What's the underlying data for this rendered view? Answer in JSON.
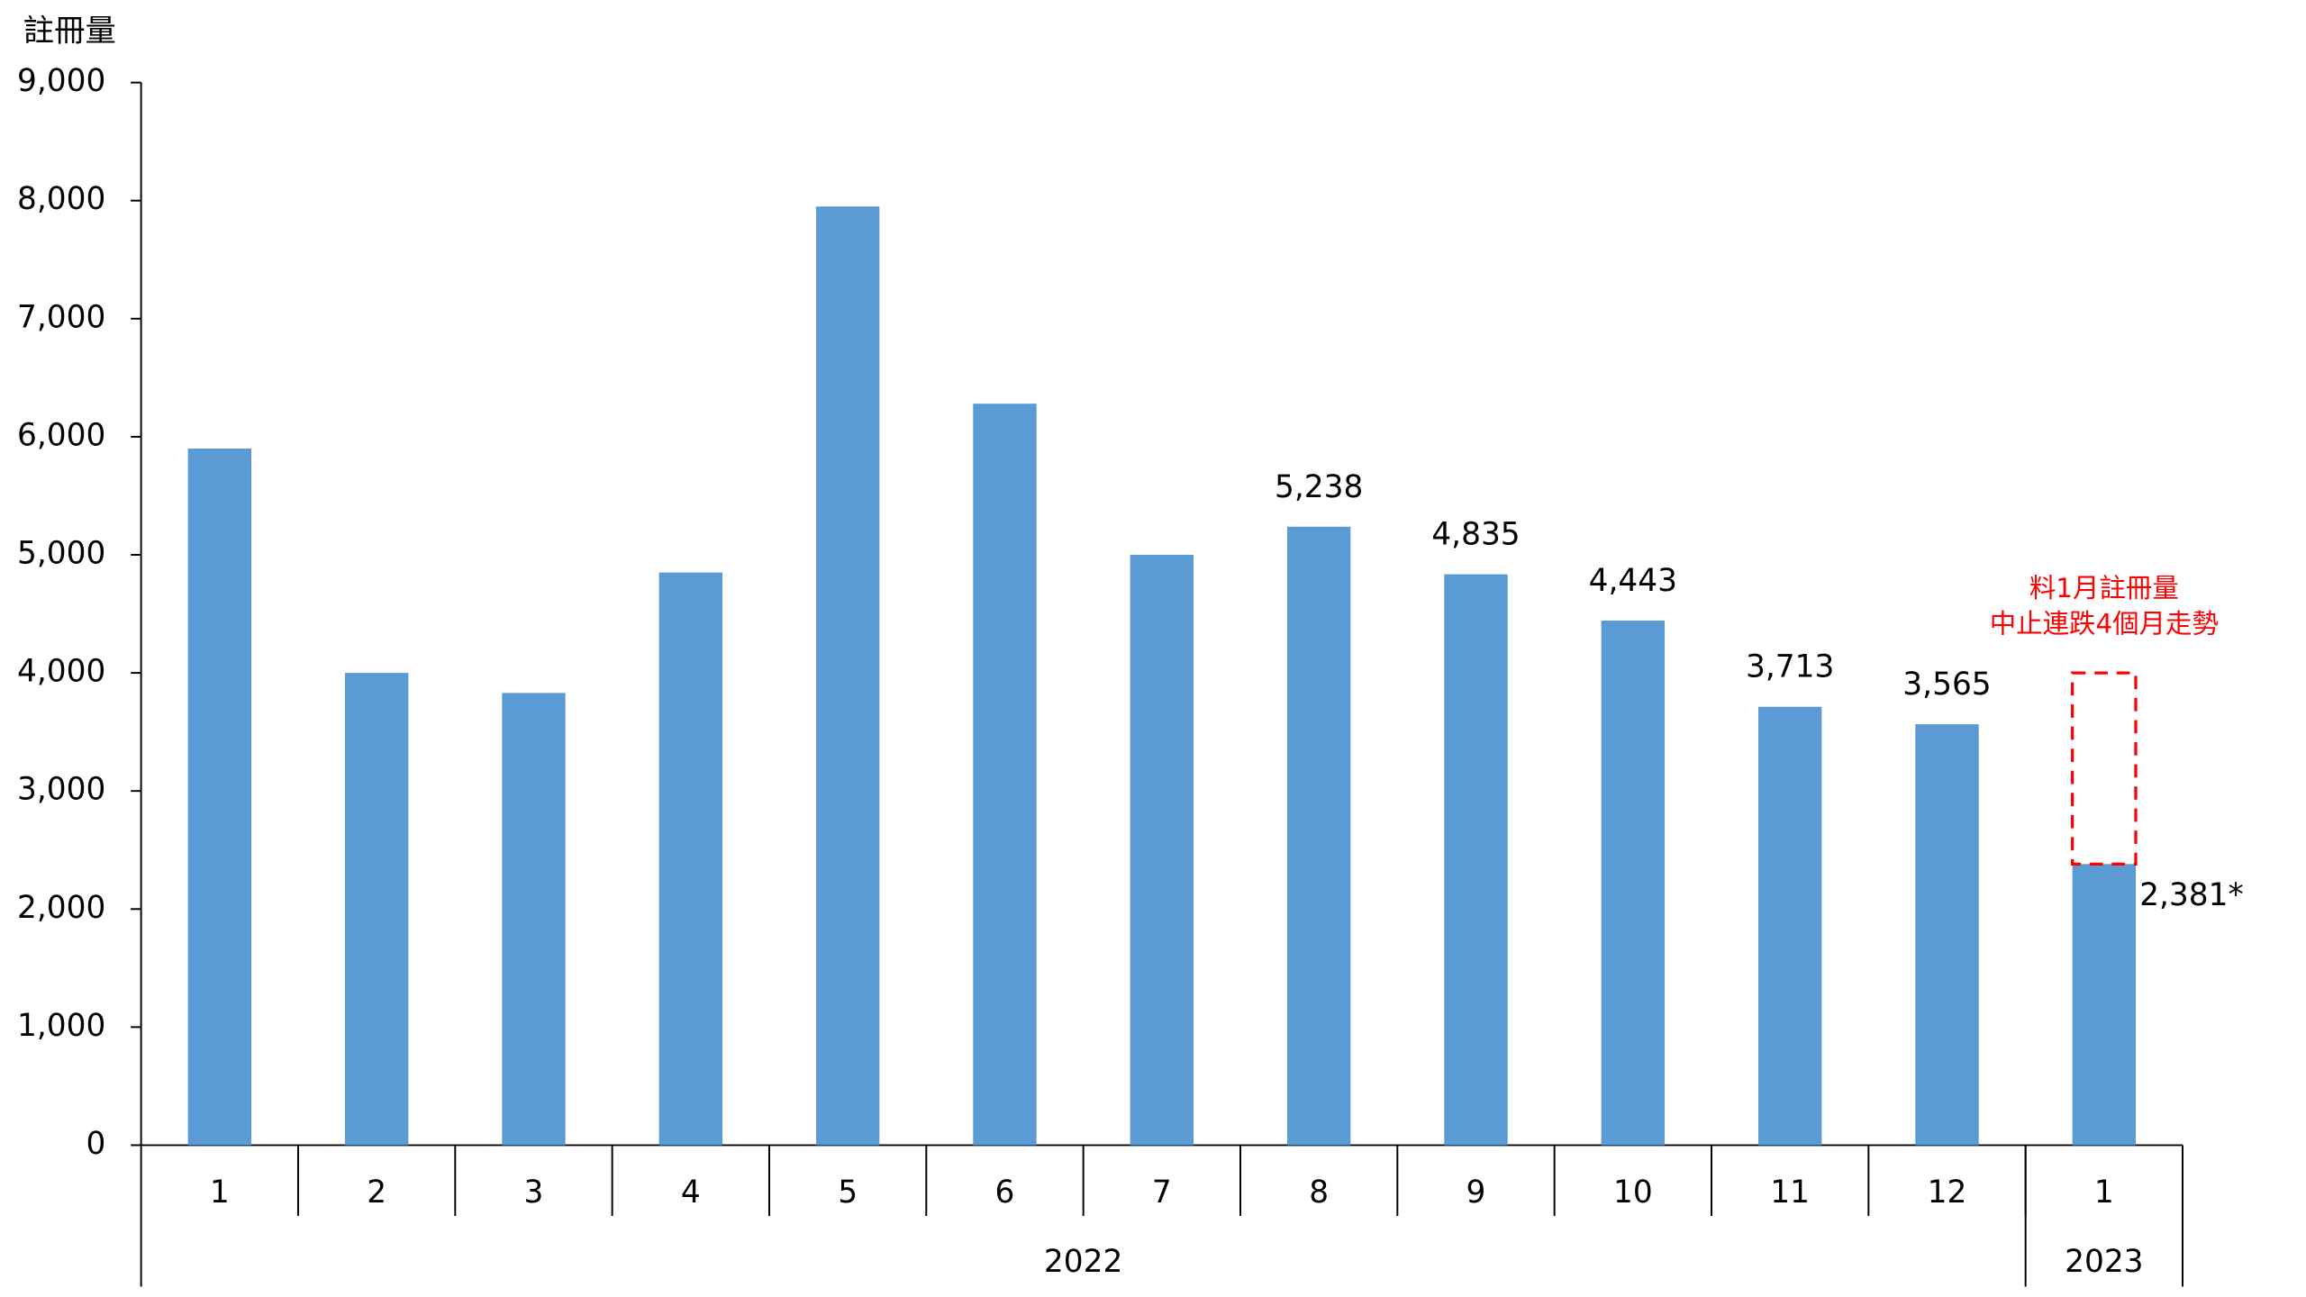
{
  "chart_data": {
    "type": "bar",
    "y_label": "註冊量",
    "groups": [
      {
        "label": "2022",
        "categories": [
          "1",
          "2",
          "3",
          "4",
          "5",
          "6",
          "7",
          "8",
          "9",
          "10",
          "11",
          "12"
        ]
      },
      {
        "label": "2023",
        "categories": [
          "1"
        ]
      }
    ],
    "values": [
      5900,
      4000,
      3830,
      4850,
      7950,
      6280,
      5000,
      5238,
      4835,
      4443,
      3713,
      3565,
      2381
    ],
    "value_labels": [
      null,
      null,
      null,
      null,
      null,
      null,
      null,
      "5,238",
      "4,835",
      "4,443",
      "3,713",
      "3,565",
      "2,381*"
    ],
    "color": "#5b9bd5",
    "ylim": [
      0,
      9000
    ],
    "yticks": [
      0,
      {
        "value": 1000,
        "label": "1,000"
      },
      {
        "value": 2000,
        "label": "2,000"
      },
      {
        "value": 3000,
        "label": "3,000"
      },
      {
        "value": 4000,
        "label": "4,000"
      },
      {
        "value": 5000,
        "label": "5,000"
      },
      {
        "value": 6000,
        "label": "6,000"
      },
      {
        "value": 7000,
        "label": "7,000"
      },
      {
        "value": 8000,
        "label": "8,000"
      },
      {
        "value": 9000,
        "label": "9,000"
      }
    ],
    "grid": false,
    "annotation": {
      "lines": [
        "料1月註冊量",
        "中止連跌4個月走勢"
      ],
      "color": "#ff0000",
      "box_top": 4000
    }
  }
}
